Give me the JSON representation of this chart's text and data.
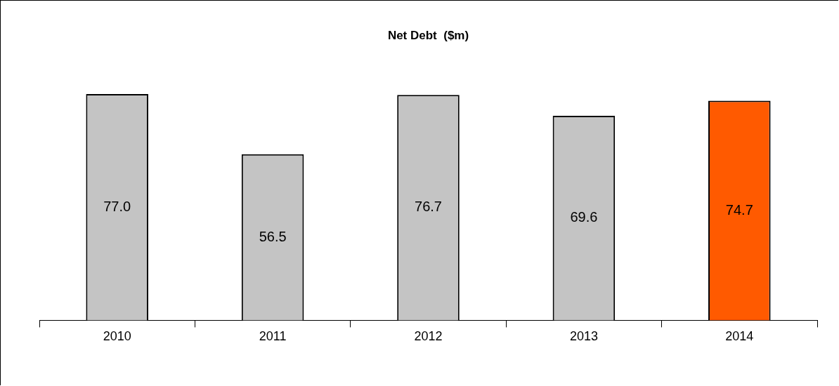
{
  "chart_data": {
    "type": "bar",
    "title": "Net Debt  ($m)",
    "categories": [
      "2010",
      "2011",
      "2012",
      "2013",
      "2014"
    ],
    "values": [
      77.0,
      56.5,
      76.7,
      69.6,
      74.7
    ],
    "colors": [
      "#c4c4c4",
      "#c4c4c4",
      "#c4c4c4",
      "#c4c4c4",
      "#ff5a00"
    ],
    "value_labels": [
      "77.0",
      "56.5",
      "76.7",
      "69.6",
      "74.7"
    ],
    "legend": false,
    "grid": false
  }
}
